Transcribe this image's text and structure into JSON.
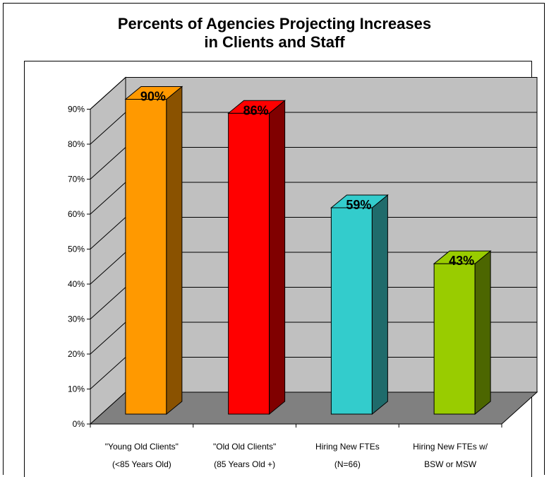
{
  "chart_data": {
    "type": "bar",
    "title": [
      "Percents of Agencies Projecting Increases",
      "in Clients and Staff"
    ],
    "categories": [
      [
        "\"Young Old Clients\"",
        "(<85 Years Old)"
      ],
      [
        "\"Old Old Clients\"",
        "(85 Years Old +)"
      ],
      [
        "Hiring New FTEs",
        "(N=66)"
      ],
      [
        "Hiring New FTEs w/",
        "BSW or MSW"
      ]
    ],
    "values": [
      90,
      86,
      59,
      43
    ],
    "data_labels": [
      "90%",
      "86%",
      "59%",
      "43%"
    ],
    "ylim": [
      0,
      90
    ],
    "yticks": [
      "0%",
      "10%",
      "20%",
      "30%",
      "40%",
      "50%",
      "60%",
      "70%",
      "80%",
      "90%"
    ],
    "grid": true,
    "legend": "none",
    "colors": {
      "front": [
        "#ff9900",
        "#ff0000",
        "#33cccc",
        "#99cc00"
      ],
      "side": [
        "#8a5200",
        "#800000",
        "#1f6b6b",
        "#4c6600"
      ],
      "top": [
        "#ff9900",
        "#ff0000",
        "#33cccc",
        "#99cc00"
      ],
      "wall": "#c0c0c0",
      "floor": "#808080"
    }
  }
}
